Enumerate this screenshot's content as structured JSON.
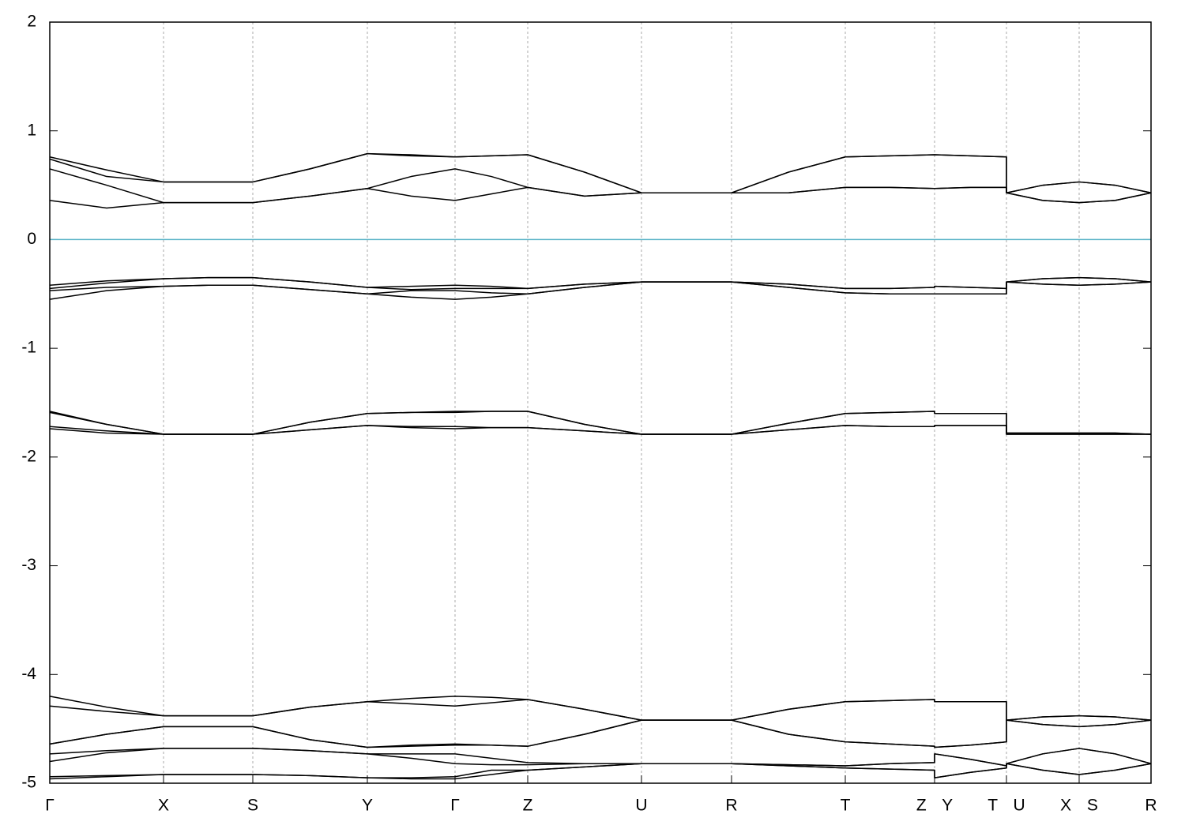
{
  "chart_data": {
    "type": "line",
    "x": [
      0,
      0.72,
      1.44,
      2.005,
      2.57,
      3.295,
      4.02,
      4.575,
      5.13,
      5.59,
      6.05,
      6.77,
      7.49,
      8.06,
      8.63,
      9.35,
      10.07,
      10.635,
      11.2,
      11.2,
      11.655,
      12.11,
      12.11,
      12.57,
      13.03,
      13.485,
      13.94
    ],
    "xlim": [
      0,
      13.94
    ],
    "xticks": [
      {
        "value": 0,
        "label": "Γ"
      },
      {
        "value": 1.44,
        "label": "X"
      },
      {
        "value": 2.57,
        "label": "S"
      },
      {
        "value": 4.02,
        "label": "Y"
      },
      {
        "value": 5.13,
        "label": "Γ"
      },
      {
        "value": 6.05,
        "label": "Z"
      },
      {
        "value": 7.49,
        "label": "U"
      },
      {
        "value": 8.63,
        "label": "R"
      },
      {
        "value": 10.07,
        "label": "T"
      },
      {
        "value": 11.2,
        "label": "Z Y"
      },
      {
        "value": 12.11,
        "label": "T U"
      },
      {
        "value": 13.03,
        "label": "X S"
      },
      {
        "value": 13.94,
        "label": "R"
      }
    ],
    "ylim": [
      -5,
      2
    ],
    "yticks": [
      -5,
      -4,
      -3,
      -2,
      -1,
      0,
      1,
      2
    ],
    "grid": "x",
    "reference_line": {
      "value": 0,
      "color": "#5ab4c8"
    },
    "series": [
      {
        "color": "#000000",
        "values": [
          0.76,
          0.64,
          0.53,
          0.53,
          0.53,
          0.65,
          0.79,
          0.78,
          0.76,
          0.77,
          0.78,
          0.62,
          0.43,
          0.43,
          0.43,
          0.62,
          0.76,
          0.77,
          0.78,
          0.78,
          0.77,
          0.76,
          0.43,
          0.5,
          0.53,
          0.5,
          0.43
        ]
      },
      {
        "color": "#000000",
        "values": [
          0.74,
          0.58,
          0.53,
          0.53,
          0.53,
          0.65,
          0.79,
          0.77,
          0.76,
          0.77,
          0.78,
          0.62,
          0.43,
          0.43,
          0.43,
          0.62,
          0.76,
          0.77,
          0.78,
          0.78,
          0.77,
          0.76,
          0.43,
          0.5,
          0.53,
          0.5,
          0.43
        ]
      },
      {
        "color": "#000000",
        "values": [
          0.65,
          0.5,
          0.34,
          0.34,
          0.34,
          0.4,
          0.47,
          0.58,
          0.65,
          0.58,
          0.48,
          0.4,
          0.43,
          0.43,
          0.43,
          0.43,
          0.48,
          0.48,
          0.47,
          0.47,
          0.48,
          0.48,
          0.43,
          0.36,
          0.34,
          0.36,
          0.43
        ]
      },
      {
        "color": "#000000",
        "values": [
          0.36,
          0.29,
          0.34,
          0.34,
          0.34,
          0.4,
          0.47,
          0.4,
          0.36,
          0.42,
          0.48,
          0.4,
          0.43,
          0.43,
          0.43,
          0.43,
          0.48,
          0.48,
          0.47,
          0.47,
          0.48,
          0.48,
          0.43,
          0.36,
          0.34,
          0.36,
          0.43
        ]
      },
      {
        "color": "#000000",
        "values": [
          -0.42,
          -0.38,
          -0.36,
          -0.35,
          -0.35,
          -0.39,
          -0.44,
          -0.43,
          -0.42,
          -0.43,
          -0.45,
          -0.41,
          -0.39,
          -0.39,
          -0.39,
          -0.41,
          -0.45,
          -0.45,
          -0.44,
          -0.43,
          -0.44,
          -0.45,
          -0.39,
          -0.36,
          -0.35,
          -0.36,
          -0.39
        ]
      },
      {
        "color": "#000000",
        "values": [
          -0.45,
          -0.4,
          -0.36,
          -0.35,
          -0.35,
          -0.39,
          -0.44,
          -0.46,
          -0.45,
          -0.45,
          -0.45,
          -0.41,
          -0.39,
          -0.39,
          -0.39,
          -0.41,
          -0.45,
          -0.45,
          -0.44,
          -0.43,
          -0.44,
          -0.45,
          -0.39,
          -0.36,
          -0.35,
          -0.36,
          -0.39
        ]
      },
      {
        "color": "#000000",
        "values": [
          -0.47,
          -0.44,
          -0.43,
          -0.42,
          -0.42,
          -0.46,
          -0.5,
          -0.47,
          -0.47,
          -0.49,
          -0.5,
          -0.44,
          -0.39,
          -0.39,
          -0.39,
          -0.44,
          -0.49,
          -0.5,
          -0.5,
          -0.5,
          -0.5,
          -0.5,
          -0.39,
          -0.41,
          -0.42,
          -0.41,
          -0.39
        ]
      },
      {
        "color": "#000000",
        "values": [
          -0.55,
          -0.47,
          -0.43,
          -0.42,
          -0.42,
          -0.46,
          -0.5,
          -0.53,
          -0.55,
          -0.53,
          -0.5,
          -0.44,
          -0.39,
          -0.39,
          -0.39,
          -0.44,
          -0.49,
          -0.5,
          -0.5,
          -0.5,
          -0.5,
          -0.5,
          -0.39,
          -0.41,
          -0.42,
          -0.41,
          -0.39
        ]
      },
      {
        "color": "#000000",
        "values": [
          -1.58,
          -1.7,
          -1.79,
          -1.79,
          -1.79,
          -1.68,
          -1.6,
          -1.59,
          -1.58,
          -1.58,
          -1.58,
          -1.7,
          -1.79,
          -1.79,
          -1.79,
          -1.69,
          -1.6,
          -1.59,
          -1.58,
          -1.6,
          -1.6,
          -1.6,
          -1.78,
          -1.78,
          -1.78,
          -1.78,
          -1.79
        ]
      },
      {
        "color": "#000000",
        "values": [
          -1.59,
          -1.7,
          -1.79,
          -1.79,
          -1.79,
          -1.68,
          -1.6,
          -1.59,
          -1.59,
          -1.58,
          -1.58,
          -1.7,
          -1.79,
          -1.79,
          -1.79,
          -1.69,
          -1.6,
          -1.59,
          -1.58,
          -1.6,
          -1.6,
          -1.6,
          -1.78,
          -1.78,
          -1.78,
          -1.78,
          -1.79
        ]
      },
      {
        "color": "#000000",
        "values": [
          -1.72,
          -1.76,
          -1.79,
          -1.79,
          -1.79,
          -1.75,
          -1.71,
          -1.72,
          -1.72,
          -1.73,
          -1.73,
          -1.76,
          -1.79,
          -1.79,
          -1.79,
          -1.75,
          -1.71,
          -1.72,
          -1.72,
          -1.71,
          -1.71,
          -1.71,
          -1.79,
          -1.79,
          -1.79,
          -1.79,
          -1.79
        ]
      },
      {
        "color": "#000000",
        "values": [
          -1.74,
          -1.78,
          -1.79,
          -1.79,
          -1.79,
          -1.75,
          -1.71,
          -1.73,
          -1.74,
          -1.73,
          -1.73,
          -1.76,
          -1.79,
          -1.79,
          -1.79,
          -1.75,
          -1.71,
          -1.72,
          -1.72,
          -1.71,
          -1.71,
          -1.71,
          -1.79,
          -1.79,
          -1.79,
          -1.79,
          -1.79
        ]
      },
      {
        "color": "#000000",
        "values": [
          -4.2,
          -4.3,
          -4.38,
          -4.38,
          -4.38,
          -4.3,
          -4.25,
          -4.22,
          -4.2,
          -4.21,
          -4.23,
          -4.32,
          -4.42,
          -4.42,
          -4.42,
          -4.32,
          -4.25,
          -4.24,
          -4.23,
          -4.25,
          -4.25,
          -4.25,
          -4.42,
          -4.39,
          -4.38,
          -4.39,
          -4.42
        ]
      },
      {
        "color": "#000000",
        "values": [
          -4.29,
          -4.34,
          -4.38,
          -4.38,
          -4.38,
          -4.3,
          -4.25,
          -4.27,
          -4.29,
          -4.26,
          -4.23,
          -4.32,
          -4.42,
          -4.42,
          -4.42,
          -4.32,
          -4.25,
          -4.24,
          -4.23,
          -4.25,
          -4.25,
          -4.25,
          -4.42,
          -4.39,
          -4.38,
          -4.39,
          -4.42
        ]
      },
      {
        "color": "#000000",
        "values": [
          -4.64,
          -4.55,
          -4.48,
          -4.48,
          -4.48,
          -4.6,
          -4.67,
          -4.65,
          -4.64,
          -4.65,
          -4.66,
          -4.55,
          -4.42,
          -4.42,
          -4.42,
          -4.55,
          -4.62,
          -4.64,
          -4.66,
          -4.67,
          -4.65,
          -4.62,
          -4.42,
          -4.46,
          -4.48,
          -4.46,
          -4.42
        ]
      },
      {
        "color": "#000000",
        "values": [
          -4.64,
          -4.55,
          -4.48,
          -4.48,
          -4.48,
          -4.6,
          -4.67,
          -4.66,
          -4.65,
          -4.65,
          -4.66,
          -4.55,
          -4.42,
          -4.42,
          -4.42,
          -4.55,
          -4.62,
          -4.64,
          -4.66,
          -4.67,
          -4.65,
          -4.62,
          -4.42,
          -4.46,
          -4.48,
          -4.46,
          -4.42
        ]
      },
      {
        "color": "#000000",
        "values": [
          -4.73,
          -4.7,
          -4.68,
          -4.68,
          -4.68,
          -4.7,
          -4.73,
          -4.73,
          -4.73,
          -4.77,
          -4.81,
          -4.82,
          -4.82,
          -4.82,
          -4.82,
          -4.83,
          -4.84,
          -4.82,
          -4.81,
          -4.73,
          -4.78,
          -4.84,
          -4.82,
          -4.73,
          -4.68,
          -4.73,
          -4.82
        ]
      },
      {
        "color": "#000000",
        "values": [
          -4.8,
          -4.72,
          -4.68,
          -4.68,
          -4.68,
          -4.7,
          -4.73,
          -4.77,
          -4.82,
          -4.83,
          -4.83,
          -4.82,
          -4.82,
          -4.82,
          -4.82,
          -4.83,
          -4.84,
          -4.82,
          -4.81,
          -4.73,
          -4.78,
          -4.84,
          -4.82,
          -4.73,
          -4.68,
          -4.73,
          -4.82
        ]
      },
      {
        "color": "#000000",
        "values": [
          -4.94,
          -4.93,
          -4.92,
          -4.92,
          -4.92,
          -4.93,
          -4.95,
          -4.95,
          -4.94,
          -4.88,
          -4.88,
          -4.85,
          -4.82,
          -4.82,
          -4.82,
          -4.84,
          -4.86,
          -4.87,
          -4.88,
          -4.95,
          -4.9,
          -4.86,
          -4.82,
          -4.88,
          -4.92,
          -4.88,
          -4.82
        ]
      },
      {
        "color": "#000000",
        "values": [
          -4.96,
          -4.94,
          -4.92,
          -4.92,
          -4.92,
          -4.93,
          -4.95,
          -4.96,
          -4.96,
          -4.92,
          -4.88,
          -4.85,
          -4.82,
          -4.82,
          -4.82,
          -4.84,
          -4.86,
          -4.87,
          -4.88,
          -4.95,
          -4.9,
          -4.86,
          -4.82,
          -4.88,
          -4.92,
          -4.88,
          -4.82
        ]
      }
    ]
  }
}
